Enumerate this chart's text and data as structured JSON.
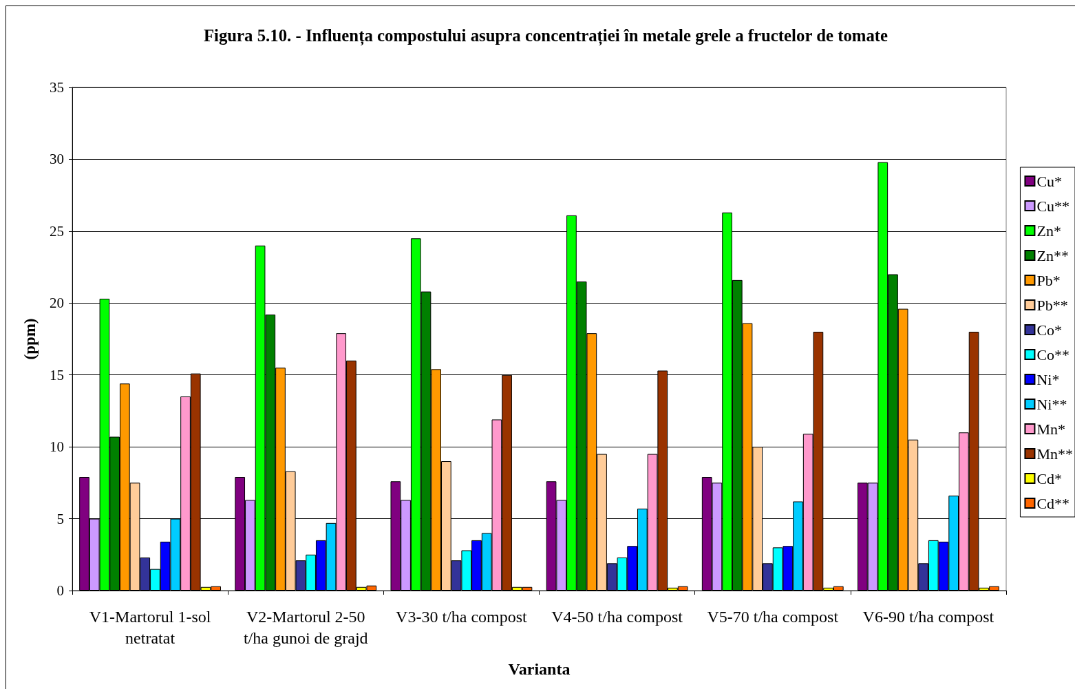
{
  "chart_data": {
    "type": "bar",
    "title": "Figura 5.10. - Influența compostului asupra concentrației în metale grele a fructelor de tomate",
    "xlabel": "Varianta",
    "ylabel": "(ppm)",
    "categories": [
      "V1-Martorul 1-sol netratat",
      "V2-Martorul 2-50 t/ha gunoi de grajd",
      "V3-30 t/ha compost",
      "V4-50 t/ha compost",
      "V5-70 t/ha compost",
      "V6-90 t/ha compost"
    ],
    "series": [
      {
        "name": "Cu*",
        "color": "#800080",
        "values": [
          7.9,
          7.9,
          7.6,
          7.6,
          7.9,
          7.5
        ]
      },
      {
        "name": "Cu**",
        "color": "#cc99ff",
        "values": [
          5.0,
          6.3,
          6.3,
          6.3,
          7.5,
          7.5
        ]
      },
      {
        "name": "Zn*",
        "color": "#00ff00",
        "values": [
          20.3,
          24.0,
          24.5,
          26.1,
          26.3,
          29.8
        ]
      },
      {
        "name": "Zn**",
        "color": "#008000",
        "values": [
          10.7,
          19.2,
          20.8,
          21.5,
          21.6,
          22.0
        ]
      },
      {
        "name": "Pb*",
        "color": "#ff9900",
        "values": [
          14.4,
          15.5,
          15.4,
          17.9,
          18.6,
          19.6
        ]
      },
      {
        "name": "Pb**",
        "color": "#ffcc99",
        "values": [
          7.5,
          8.3,
          9.0,
          9.5,
          10.0,
          10.5
        ]
      },
      {
        "name": "Co*",
        "color": "#333399",
        "values": [
          2.3,
          2.1,
          2.1,
          1.9,
          1.9,
          1.9
        ]
      },
      {
        "name": "Co**",
        "color": "#00ffff",
        "values": [
          1.5,
          2.5,
          2.8,
          2.3,
          3.0,
          3.5
        ]
      },
      {
        "name": "Ni*",
        "color": "#0000ff",
        "values": [
          3.4,
          3.5,
          3.5,
          3.1,
          3.1,
          3.4
        ]
      },
      {
        "name": "Ni**",
        "color": "#00ccff",
        "values": [
          5.0,
          4.7,
          4.0,
          5.7,
          6.2,
          6.6
        ]
      },
      {
        "name": "Mn*",
        "color": "#ff99cc",
        "values": [
          13.5,
          17.9,
          11.9,
          9.5,
          10.9,
          11.0
        ]
      },
      {
        "name": "Mn**",
        "color": "#993300",
        "values": [
          15.1,
          16.0,
          15.0,
          15.3,
          18.0,
          18.0
        ]
      },
      {
        "name": "Cd*",
        "color": "#ffff00",
        "values": [
          0.25,
          0.25,
          0.25,
          0.2,
          0.2,
          0.2
        ]
      },
      {
        "name": "Cd**",
        "color": "#ff6600",
        "values": [
          0.3,
          0.35,
          0.25,
          0.3,
          0.3,
          0.3
        ]
      }
    ],
    "ylim": [
      0,
      35
    ],
    "yticks": [
      0,
      5,
      10,
      15,
      20,
      25,
      30,
      35
    ],
    "grid": "y",
    "legend": "right"
  }
}
